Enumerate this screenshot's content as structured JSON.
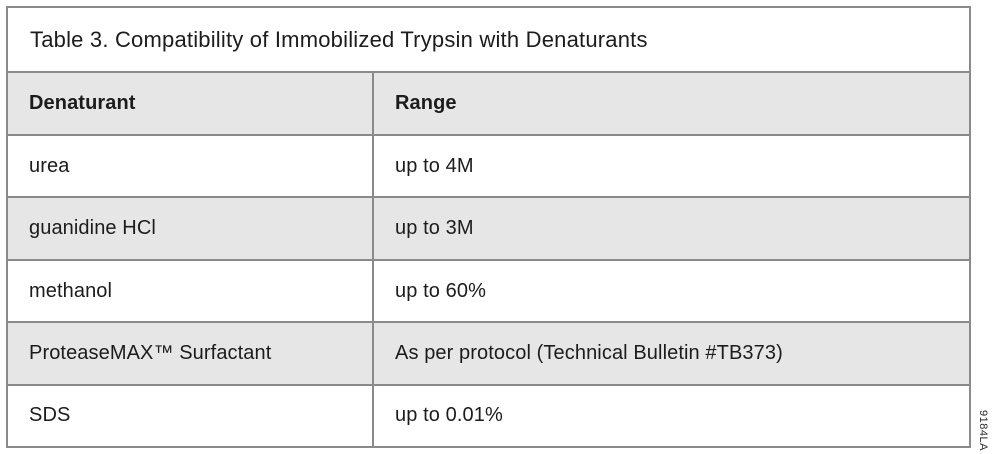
{
  "title": "Table 3. Compatibility of Immobilized Trypsin with Denaturants",
  "table": {
    "columns": {
      "denaturant": "Denaturant",
      "range": "Range"
    },
    "rows": [
      {
        "denaturant": "urea",
        "range": "up to 4M"
      },
      {
        "denaturant": "guanidine HCl",
        "range": "up to 3M"
      },
      {
        "denaturant": "methanol",
        "range": "up to 60%"
      },
      {
        "denaturant": "ProteaseMAX™ Surfactant",
        "range": "As per protocol (Technical Bulletin #TB373)"
      },
      {
        "denaturant": "SDS",
        "range": "up to 0.01%"
      }
    ]
  },
  "figure_code": "9184LA",
  "colors": {
    "background": "#ffffff",
    "shaded_row_bg": "#e6e6e6",
    "border": "#8a8a8a",
    "text": "#1c1c1c"
  }
}
